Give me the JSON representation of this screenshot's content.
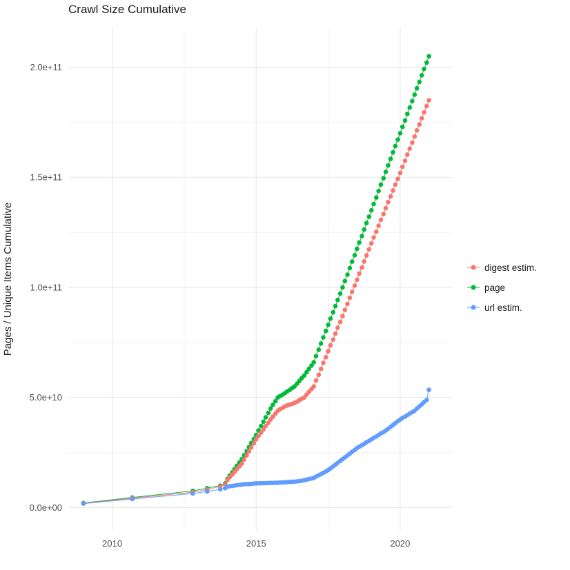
{
  "chart_data": {
    "type": "line",
    "title": "Crawl Size Cumulative",
    "xlabel": "",
    "ylabel": "Pages / Unique Items Cumulative",
    "legend_position": "right",
    "grid": true,
    "background": "#ffffff",
    "colors": {
      "grid_major": "#e5e5e5",
      "grid_minor": "#f2f2f2",
      "tick_text": "#4d4d4d",
      "title_text": "#1a1a1a"
    },
    "value_unit_multiplier": 1000000000,
    "x_domain": [
      2008.5,
      2021.8
    ],
    "y_domain_units": [
      -10.5,
      218
    ],
    "x_ticks": [
      {
        "value": 2010,
        "label": "2010"
      },
      {
        "value": 2015,
        "label": "2015"
      },
      {
        "value": 2020,
        "label": "2020"
      }
    ],
    "x_minor_ticks": [
      2012.5,
      2017.5
    ],
    "y_ticks": [
      {
        "value": 0,
        "label": "0.0e+00"
      },
      {
        "value": 50,
        "label": "5.0e+10"
      },
      {
        "value": 100,
        "label": "1.0e+11"
      },
      {
        "value": 150,
        "label": "1.5e+11"
      },
      {
        "value": 200,
        "label": "2.0e+11"
      }
    ],
    "y_minor_ticks": [
      25,
      75,
      125,
      175
    ],
    "x": [
      2009.0,
      2010.7,
      2012.8,
      2013.3,
      2013.75,
      2013.92,
      2014.0,
      2014.08,
      2014.17,
      2014.25,
      2014.33,
      2014.42,
      2014.5,
      2014.58,
      2014.67,
      2014.75,
      2014.83,
      2014.92,
      2015.0,
      2015.08,
      2015.17,
      2015.25,
      2015.33,
      2015.42,
      2015.5,
      2015.58,
      2015.67,
      2015.75,
      2015.83,
      2015.92,
      2016.0,
      2016.08,
      2016.17,
      2016.25,
      2016.33,
      2016.42,
      2016.5,
      2016.58,
      2016.67,
      2016.75,
      2016.83,
      2016.92,
      2017.0,
      2017.08,
      2017.17,
      2017.25,
      2017.33,
      2017.42,
      2017.5,
      2017.58,
      2017.67,
      2017.75,
      2017.83,
      2017.92,
      2018.0,
      2018.08,
      2018.17,
      2018.25,
      2018.33,
      2018.42,
      2018.5,
      2018.58,
      2018.67,
      2018.75,
      2018.83,
      2018.92,
      2019.0,
      2019.08,
      2019.17,
      2019.25,
      2019.33,
      2019.42,
      2019.5,
      2019.58,
      2019.67,
      2019.75,
      2019.83,
      2019.92,
      2020.0,
      2020.08,
      2020.17,
      2020.25,
      2020.33,
      2020.42,
      2020.5,
      2020.58,
      2020.67,
      2020.75,
      2020.83,
      2020.92,
      2021.0
    ],
    "series": [
      {
        "name": "digest estim.",
        "color": "#F8766D",
        "values": [
          2.0,
          4.3,
          7.0,
          8.2,
          9.6,
          10.5,
          12.5,
          13.8,
          15.0,
          16.3,
          17.5,
          18.8,
          20.0,
          21.8,
          23.7,
          25.5,
          27.3,
          29.2,
          31.0,
          32.5,
          34.0,
          35.5,
          37.0,
          38.5,
          40.0,
          41.3,
          42.7,
          44.0,
          44.7,
          45.3,
          46.0,
          46.4,
          46.8,
          47.1,
          47.5,
          48.1,
          48.8,
          49.4,
          50.0,
          51.3,
          52.5,
          53.8,
          55.0,
          57.7,
          60.3,
          63.0,
          65.7,
          68.3,
          71.0,
          73.7,
          76.3,
          79.0,
          81.7,
          84.3,
          87.0,
          89.8,
          92.5,
          95.3,
          98.0,
          100.8,
          103.5,
          106.3,
          109.0,
          111.8,
          114.5,
          117.3,
          120.0,
          122.7,
          125.3,
          128.0,
          130.7,
          133.3,
          136.0,
          138.7,
          141.3,
          144.0,
          146.7,
          149.3,
          152.0,
          154.8,
          157.5,
          160.3,
          163.0,
          165.8,
          168.5,
          171.3,
          174.0,
          176.8,
          179.5,
          182.3,
          185.0
        ]
      },
      {
        "name": "page",
        "color": "#00BA38",
        "values": [
          2.1,
          4.6,
          7.6,
          8.8,
          10.0,
          11.0,
          13.0,
          14.5,
          16.0,
          17.5,
          19.0,
          20.5,
          22.0,
          23.8,
          25.7,
          27.5,
          29.3,
          31.2,
          33.0,
          35.0,
          37.0,
          39.0,
          41.0,
          43.0,
          45.0,
          46.7,
          48.3,
          50.0,
          50.7,
          51.3,
          52.0,
          52.8,
          53.5,
          54.3,
          55.0,
          56.3,
          57.5,
          58.8,
          60.0,
          61.5,
          63.0,
          64.5,
          66.0,
          68.8,
          71.7,
          74.5,
          77.3,
          80.2,
          83.0,
          85.8,
          88.7,
          91.5,
          94.3,
          97.2,
          100.0,
          102.9,
          105.8,
          108.8,
          111.7,
          114.6,
          117.5,
          120.4,
          123.3,
          126.3,
          129.2,
          132.1,
          135.0,
          137.9,
          140.8,
          143.8,
          146.7,
          149.6,
          152.5,
          155.4,
          158.3,
          161.3,
          164.2,
          167.1,
          170.0,
          172.9,
          175.8,
          178.8,
          181.7,
          184.6,
          187.5,
          190.4,
          193.3,
          196.3,
          199.2,
          202.1,
          205.0
        ]
      },
      {
        "name": "url estim.",
        "color": "#619CFF",
        "values": [
          1.8,
          3.9,
          6.4,
          7.3,
          8.3,
          8.8,
          9.5,
          9.7,
          9.8,
          10.0,
          10.2,
          10.3,
          10.5,
          10.6,
          10.7,
          10.7,
          10.8,
          10.9,
          11.0,
          11.0,
          11.1,
          11.1,
          11.1,
          11.2,
          11.2,
          11.2,
          11.3,
          11.3,
          11.4,
          11.4,
          11.5,
          11.6,
          11.7,
          11.7,
          11.8,
          11.9,
          12.0,
          12.2,
          12.5,
          12.7,
          13.0,
          13.2,
          13.5,
          14.1,
          14.7,
          15.2,
          15.8,
          16.4,
          17.0,
          17.8,
          18.7,
          19.5,
          20.3,
          21.2,
          22.0,
          22.8,
          23.7,
          24.5,
          25.3,
          26.2,
          27.0,
          27.7,
          28.3,
          29.0,
          29.7,
          30.3,
          31.0,
          31.7,
          32.3,
          33.0,
          33.7,
          34.3,
          35.0,
          35.8,
          36.7,
          37.5,
          38.3,
          39.2,
          40.0,
          40.7,
          41.3,
          42.0,
          42.7,
          43.3,
          44.0,
          45.0,
          46.0,
          46.9,
          47.9,
          48.9,
          53.5
        ]
      }
    ]
  }
}
